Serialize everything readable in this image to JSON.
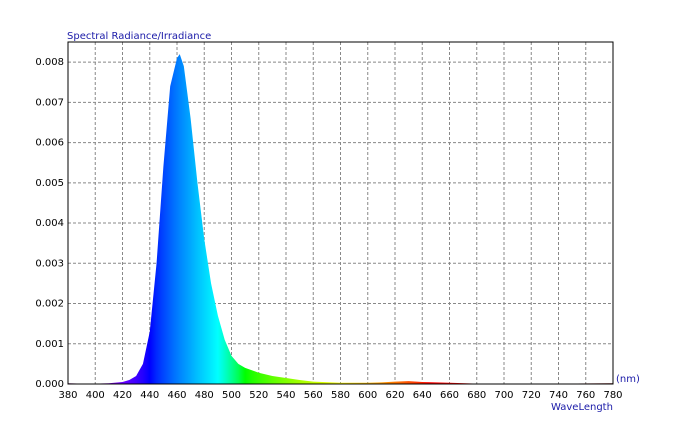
{
  "chart_data": {
    "type": "area",
    "title": "Spectral Radiance/Irradiance",
    "x_unit": "(nm)",
    "x_label": "WaveLength",
    "x": [
      380,
      390,
      400,
      410,
      420,
      425,
      430,
      435,
      440,
      445,
      450,
      455,
      460,
      462,
      465,
      470,
      475,
      480,
      485,
      490,
      495,
      500,
      505,
      510,
      520,
      530,
      540,
      550,
      560,
      580,
      600,
      610,
      620,
      630,
      640,
      660,
      680,
      700,
      740,
      780
    ],
    "values": [
      2e-05,
      1e-05,
      1e-05,
      2e-05,
      5e-05,
      0.0001,
      0.0002,
      0.0005,
      0.0013,
      0.003,
      0.0054,
      0.0074,
      0.0081,
      0.0082,
      0.0079,
      0.0066,
      0.005,
      0.0036,
      0.0025,
      0.0017,
      0.0011,
      0.0007,
      0.0005,
      0.0004,
      0.00028,
      0.0002,
      0.00015,
      0.0001,
      6e-05,
      3e-05,
      3e-05,
      4e-05,
      6e-05,
      7e-05,
      5e-05,
      3e-05,
      1e-05,
      1e-05,
      1e-05,
      2e-05
    ],
    "xlim": [
      380,
      780
    ],
    "xticks": [
      380,
      400,
      420,
      440,
      460,
      480,
      500,
      520,
      540,
      560,
      580,
      600,
      620,
      640,
      660,
      680,
      700,
      720,
      740,
      760,
      780
    ],
    "ylim": [
      0,
      0.0085
    ],
    "yticks": [
      {
        "value": 0,
        "label": "0.000"
      },
      0.001,
      0.002,
      0.003,
      0.004,
      0.005,
      0.006,
      0.007,
      0.008
    ],
    "grid": true,
    "fill": "spectrum"
  }
}
